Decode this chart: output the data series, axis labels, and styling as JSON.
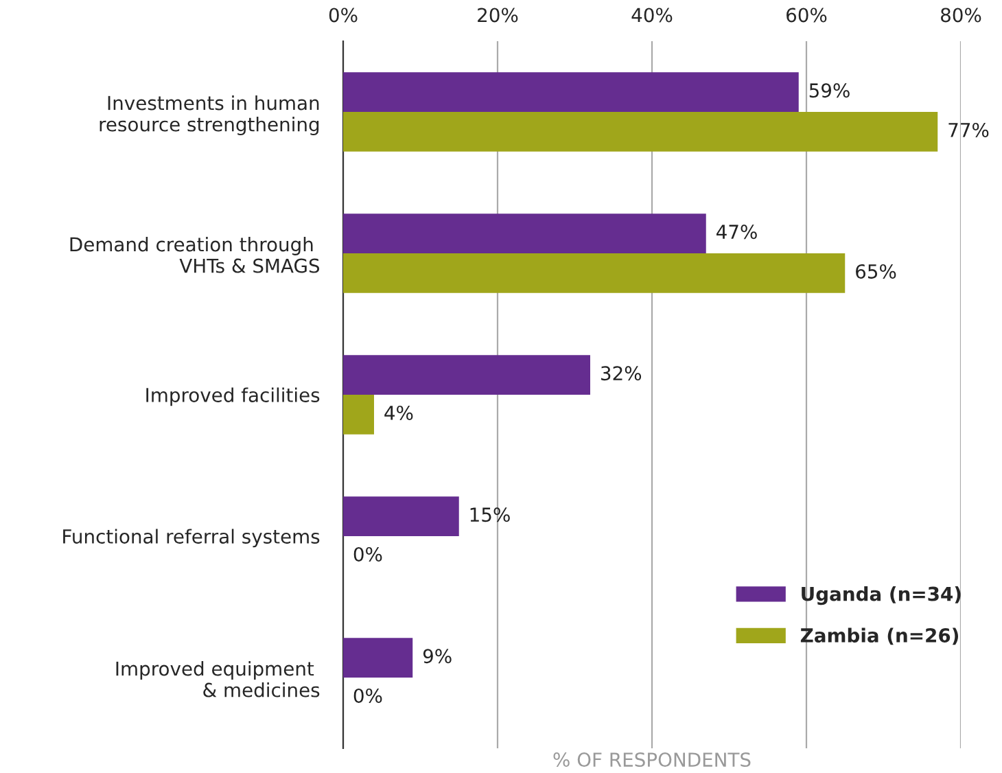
{
  "chart_data": {
    "type": "bar",
    "orientation": "horizontal",
    "xlabel": "% OF RESPONDENTS",
    "categories": [
      "Investments in human\nresource strengthening",
      "Demand creation through \nVHTs & SMAGS",
      "Improved facilities",
      "Functional referral systems",
      "Improved equipment \n& medicines"
    ],
    "series": [
      {
        "name": "Uganda (n=34)",
        "color": "#652d90",
        "values": [
          59,
          47,
          32,
          15,
          9
        ],
        "value_labels": [
          "59%",
          "47%",
          "32%",
          "15%",
          "9%"
        ]
      },
      {
        "name": "Zambia (n=26)",
        "color": "#a0a61b",
        "values": [
          77,
          65,
          4,
          0,
          0
        ],
        "value_labels": [
          "77%",
          "65%",
          "4%",
          "0%",
          "0%"
        ]
      }
    ],
    "xlim": [
      0,
      80
    ],
    "xticks": [
      {
        "value": 0,
        "label": "0%"
      },
      {
        "value": 20,
        "label": "20%"
      },
      {
        "value": 40,
        "label": "40%"
      },
      {
        "value": 60,
        "label": "60%"
      },
      {
        "value": 80,
        "label": "80%"
      }
    ],
    "grid": "x",
    "legend": "bottom right"
  }
}
